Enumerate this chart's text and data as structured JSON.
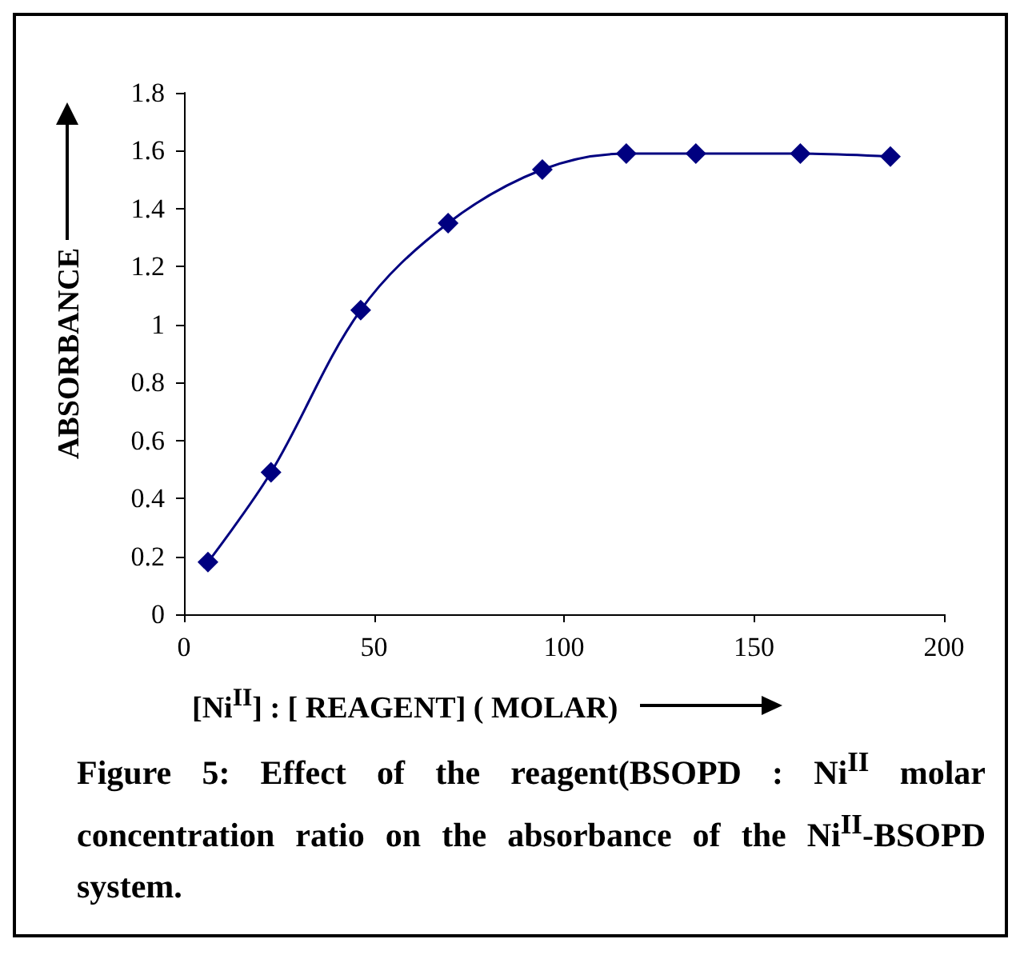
{
  "chart_data": {
    "type": "line",
    "xlabel": "[Ni$^{II}$] : [ REAGENT] ( MOLAR)",
    "ylabel": "ABSORBANCE",
    "x": [
      6.3,
      22.9,
      46.5,
      69.5,
      94.3,
      116.4,
      134.7,
      162.2,
      185.9
    ],
    "series": [
      {
        "color": "#000080",
        "values": [
          0.18,
          0.49,
          1.05,
          1.35,
          1.535,
          1.59,
          1.59,
          1.59,
          1.58
        ]
      }
    ],
    "xlim": [
      0,
      200
    ],
    "xticks": [
      0,
      50,
      100,
      150,
      200
    ],
    "ylim": [
      0,
      1.8
    ],
    "yticks": [
      0,
      0.2,
      0.4,
      0.6,
      0.8,
      1,
      1.2,
      1.4,
      1.6,
      1.8
    ],
    "marker": "diamond",
    "line_style": "solid",
    "grid": false,
    "annotations": [
      "Figure 5: Effect of the reagent(BSOPD : Ni$^{II}$ molar concentration ratio on the absorbance of the  Ni$^{II}$-BSOPD  system."
    ]
  }
}
